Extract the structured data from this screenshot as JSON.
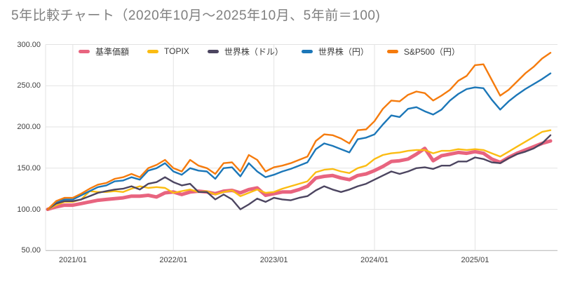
{
  "page": {
    "background": "#ffffff"
  },
  "chart_data": {
    "type": "line",
    "title": "5年比較チャート（2020年10月〜2025年10月、5年前＝100)",
    "legend_position": "top",
    "grid": true,
    "x_axis": {
      "start_month": "2020/10",
      "end_month": "2025/10",
      "months_total": 61,
      "tick_labels": [
        "2021/01",
        "2022/01",
        "2023/01",
        "2024/01",
        "2025/01"
      ],
      "tick_month_indices": [
        3,
        15,
        27,
        39,
        51
      ]
    },
    "y_axis": {
      "tick_labels": [
        "300.00",
        "250.00",
        "200.00",
        "150.00",
        "100.00",
        "50.00"
      ],
      "tick_values": [
        300,
        250,
        200,
        150,
        100,
        50
      ],
      "range": [
        50,
        300
      ],
      "baseline_value": 100
    },
    "series": [
      {
        "id": "fund_nav",
        "name": "基準価額",
        "color": "#e8647f",
        "line_width": 5,
        "values": [
          100,
          103,
          105,
          105,
          107,
          109,
          111,
          112,
          113,
          114,
          116,
          116,
          117,
          115,
          120,
          121,
          118,
          121,
          122,
          121,
          119,
          122,
          123,
          120,
          124,
          126,
          117,
          119,
          121,
          121,
          124,
          128,
          138,
          140,
          141,
          138,
          136,
          141,
          143,
          147,
          152,
          158,
          159,
          161,
          167,
          174,
          159,
          165,
          167,
          169,
          168,
          170,
          168,
          161,
          157,
          163,
          168,
          172,
          176,
          180,
          183
        ]
      },
      {
        "id": "topix",
        "name": "TOPIX",
        "color": "#fbbc12",
        "line_width": 2.4,
        "values": [
          100,
          105,
          109,
          109,
          112,
          122,
          121,
          121,
          122,
          121,
          125,
          128,
          126,
          127,
          126,
          120,
          122,
          124,
          121,
          122,
          118,
          121,
          123,
          116,
          120,
          124,
          120,
          121,
          125,
          128,
          131,
          134,
          145,
          148,
          149,
          146,
          144,
          150,
          153,
          161,
          166,
          168,
          169,
          171,
          172,
          172,
          168,
          171,
          171,
          173,
          172,
          173,
          172,
          168,
          164,
          170,
          176,
          182,
          188,
          194,
          196
        ]
      },
      {
        "id": "world_usd",
        "name": "世界株（ドル）",
        "color": "#4c4560",
        "line_width": 2.4,
        "values": [
          100,
          107,
          110,
          110,
          112,
          116,
          120,
          122,
          124,
          125,
          128,
          124,
          131,
          133,
          139,
          133,
          129,
          131,
          121,
          121,
          112,
          118,
          112,
          100,
          106,
          113,
          109,
          114,
          112,
          111,
          114,
          116,
          123,
          128,
          124,
          121,
          124,
          128,
          131,
          136,
          141,
          146,
          143,
          146,
          150,
          151,
          149,
          153,
          153,
          158,
          158,
          163,
          161,
          157,
          156,
          162,
          167,
          170,
          174,
          180,
          190
        ]
      },
      {
        "id": "world_jpy",
        "name": "世界株（円）",
        "color": "#1c77b8",
        "line_width": 2.4,
        "values": [
          100,
          109,
          112,
          112,
          117,
          122,
          127,
          129,
          134,
          135,
          139,
          136,
          147,
          150,
          156,
          146,
          142,
          150,
          147,
          146,
          137,
          150,
          151,
          140,
          156,
          146,
          139,
          142,
          146,
          149,
          153,
          157,
          173,
          180,
          177,
          173,
          169,
          185,
          187,
          191,
          203,
          214,
          212,
          222,
          224,
          219,
          215,
          221,
          232,
          240,
          246,
          248,
          247,
          233,
          221,
          231,
          239,
          246,
          252,
          258,
          265
        ]
      },
      {
        "id": "sp500_jpy",
        "name": "S&P500（円）",
        "color": "#f57b0d",
        "line_width": 2.4,
        "values": [
          100,
          110,
          114,
          114,
          119,
          125,
          130,
          132,
          137,
          139,
          143,
          139,
          150,
          154,
          160,
          150,
          146,
          160,
          153,
          150,
          143,
          156,
          157,
          146,
          166,
          160,
          146,
          151,
          153,
          156,
          160,
          164,
          183,
          191,
          190,
          186,
          180,
          196,
          197,
          207,
          222,
          232,
          231,
          239,
          243,
          241,
          232,
          238,
          245,
          256,
          262,
          275,
          276,
          257,
          238,
          245,
          255,
          265,
          273,
          283,
          290
        ]
      }
    ],
    "colors": {
      "grid_line": "#e3e3e3",
      "axis_line": "#b3b3b3",
      "tick_label": "#404040",
      "title": "#7f7f7f"
    }
  }
}
